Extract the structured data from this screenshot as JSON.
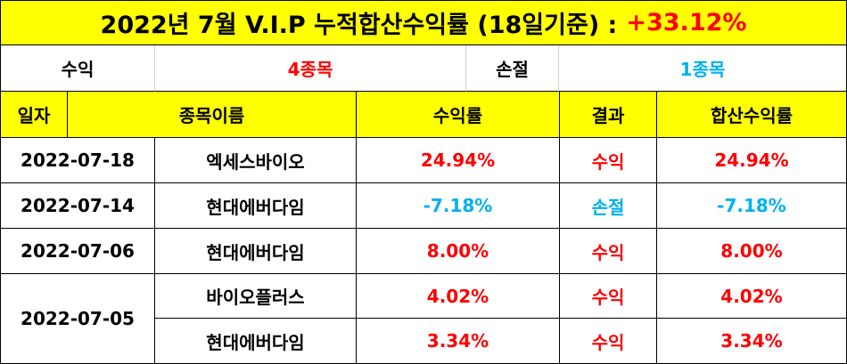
{
  "title": {
    "text": "2022년 7월 V.I.P 누적합산수익률 (18일기준) :",
    "total_return": "+33.12%"
  },
  "summary": {
    "profit_label": "수익",
    "profit_count": "4종목",
    "loss_label": "손절",
    "loss_count": "1종목"
  },
  "headers": {
    "date": "일자",
    "name": "종목이름",
    "return": "수익률",
    "result": "결과",
    "cumulative": "합산수익률"
  },
  "rows": [
    {
      "date": "2022-07-18",
      "name": "엑세스바이오",
      "return": "24.94%",
      "result": "수익",
      "cumulative": "24.94%"
    },
    {
      "date": "2022-07-14",
      "name": "현대에버다임",
      "return": "-7.18%",
      "result": "손절",
      "cumulative": "-7.18%"
    },
    {
      "date": "2022-07-06",
      "name": "현대에버다임",
      "return": "8.00%",
      "result": "수익",
      "cumulative": "8.00%"
    },
    {
      "date": "2022-07-05",
      "name": "바이오플러스",
      "return": "4.02%",
      "result": "수익",
      "cumulative": "4.02%"
    },
    {
      "date": "",
      "name": "현대에버다임",
      "return": "3.34%",
      "result": "수익",
      "cumulative": "3.34%"
    }
  ],
  "colors": {
    "header_bg": "#ffff00",
    "profit": "#ff0000",
    "loss": "#00b0f0",
    "border": "#000000"
  }
}
